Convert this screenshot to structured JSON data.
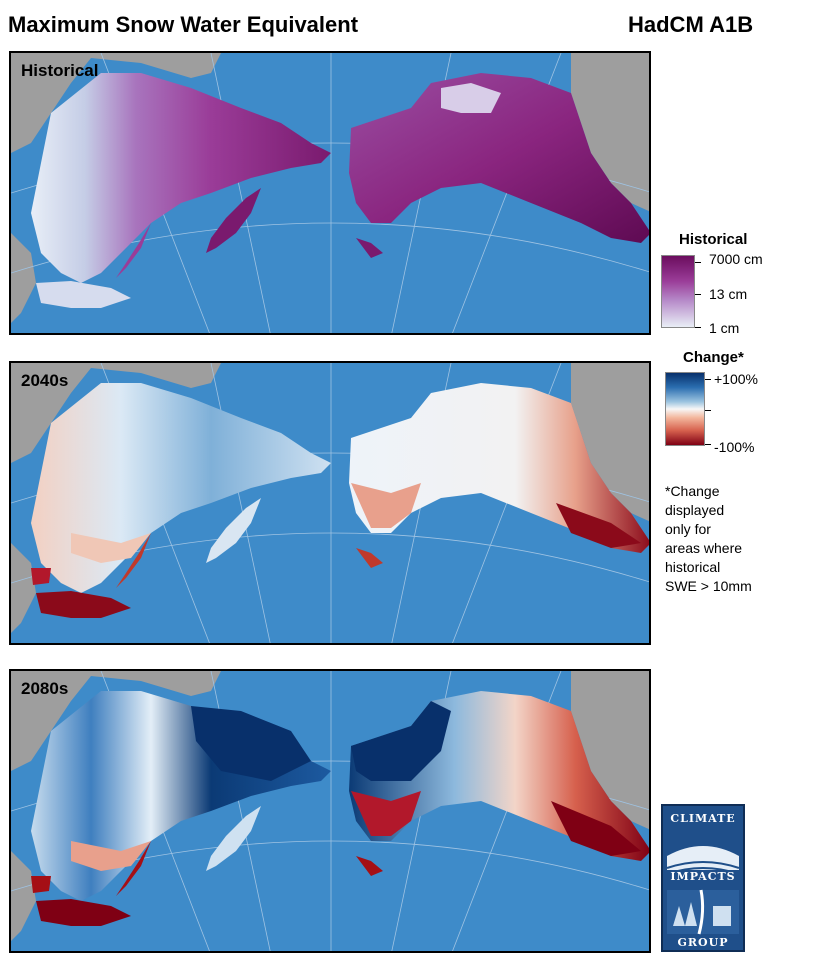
{
  "header": {
    "title": "Maximum Snow Water Equivalent",
    "scenario": "HadCM A1B"
  },
  "panels": [
    {
      "label": "Historical",
      "type": "historical"
    },
    {
      "label": "2040s",
      "type": "change"
    },
    {
      "label": "2080s",
      "type": "change"
    }
  ],
  "legend_historical": {
    "title": "Historical",
    "ticks": [
      "7000 cm",
      "13 cm",
      "1 cm"
    ]
  },
  "legend_change": {
    "title": "Change*",
    "ticks": [
      "+100%",
      "-100%"
    ]
  },
  "note": "*Change\ndisplayed\nonly for\nareas where\nhistorical\nSWE > 10mm",
  "logo": {
    "top": "CLIMATE",
    "middle": "IMPACTS",
    "bottom": "GROUP"
  },
  "colors": {
    "ocean": "#3e8bc9",
    "land_outside": "#9e9e9e",
    "hist_high": "#6b0d5e",
    "hist_mid": "#9a3c98",
    "hist_low": "#e9eef6",
    "increase": "#08306b",
    "decrease": "#7f0014"
  }
}
